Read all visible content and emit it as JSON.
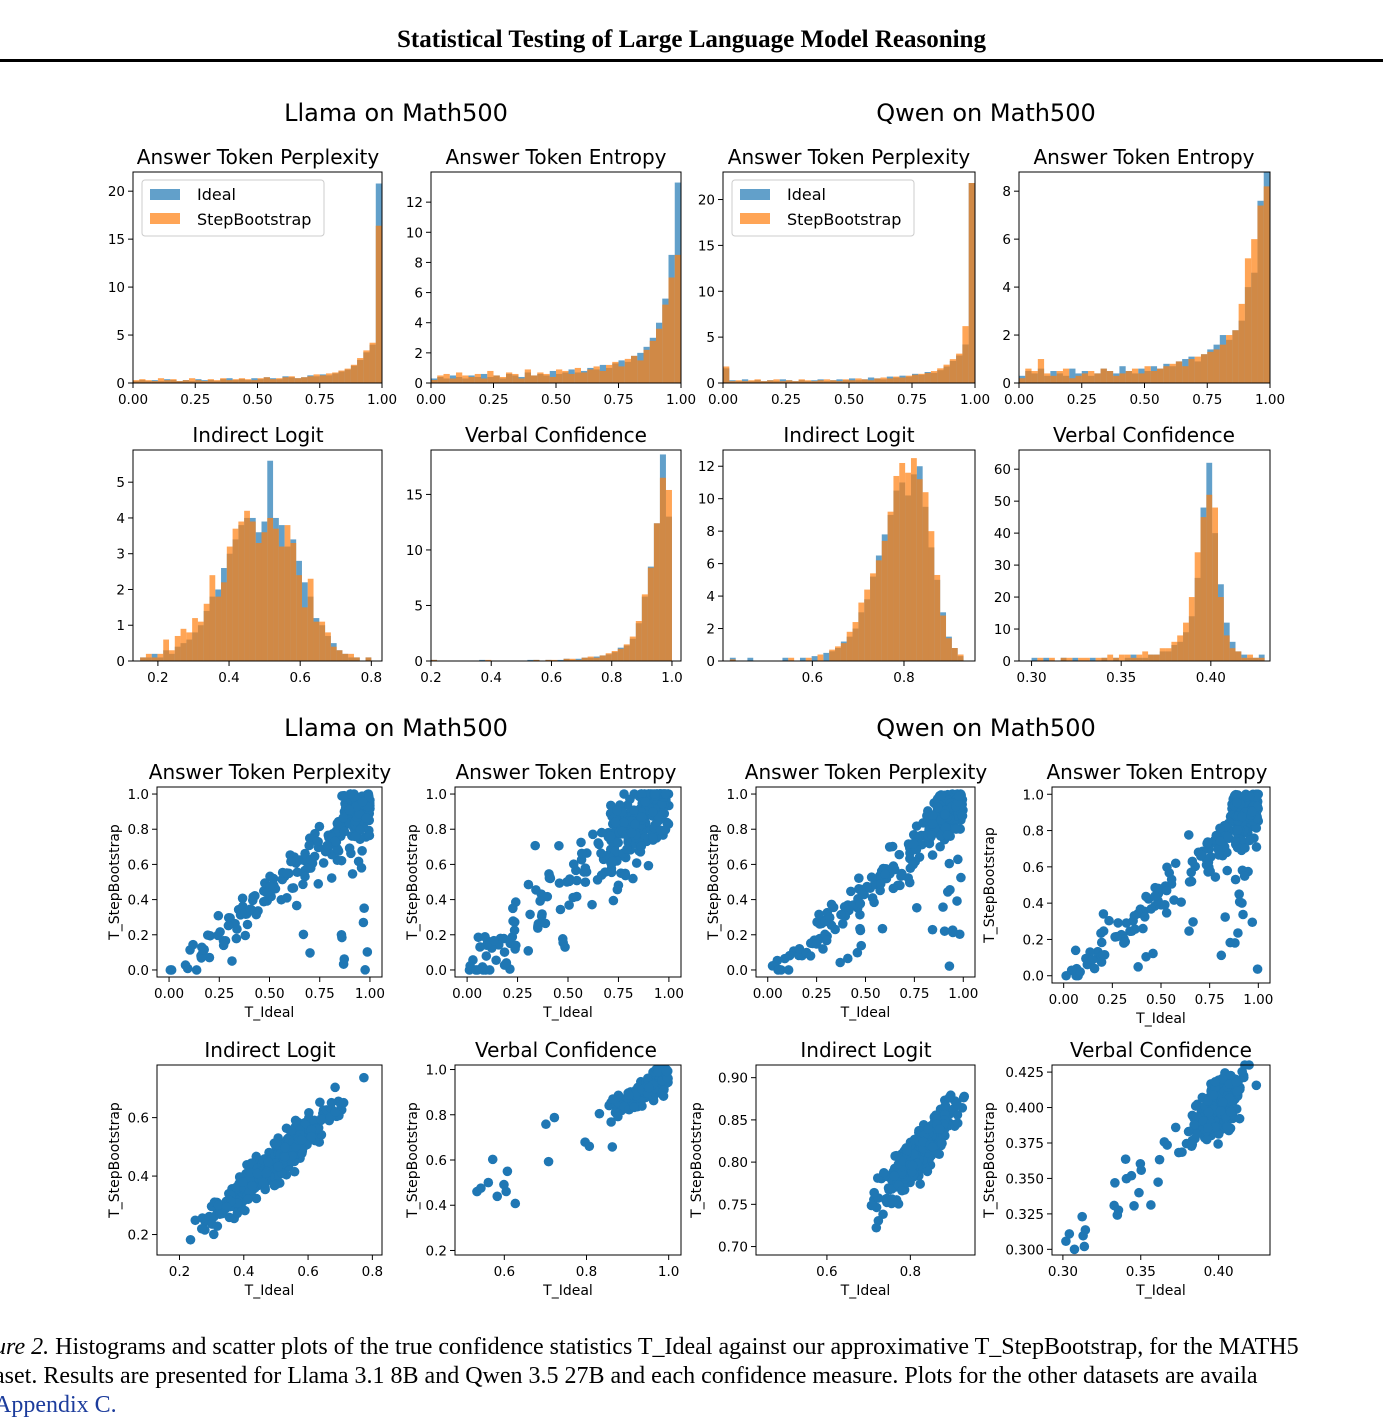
{
  "header": {
    "title": "Statistical Testing of Large Language Model Reasoning"
  },
  "figure": {
    "group_titles": [
      "Llama on Math500",
      "Qwen on Math500",
      "Llama on Math500",
      "Qwen on Math500"
    ],
    "legend": {
      "ideal": "Ideal",
      "step": "StepBootstrap"
    },
    "colors": {
      "ideal": "#1f77b4",
      "step": "#ff7f0e",
      "scatter": "#1f77b4"
    },
    "scatter_xlabel": "T_Ideal",
    "scatter_ylabel": "T_StepBootstrap"
  },
  "chart_data": [
    {
      "type": "histogram",
      "group": "Llama on Math500",
      "title": "Answer Token Perplexity",
      "xlim": [
        0,
        1
      ],
      "ylim": [
        0,
        22
      ],
      "xticks": [
        "0.00",
        "0.25",
        "0.50",
        "0.75",
        "1.00"
      ],
      "yticks": [
        0,
        5,
        10,
        15,
        20
      ],
      "legend": true,
      "ideal_bins": {
        "range": [
          0,
          1
        ],
        "heights": [
          0.2,
          0.3,
          0.2,
          0.3,
          0.2,
          0.4,
          0.3,
          0.2,
          0.3,
          0.2,
          0.4,
          0.3,
          0.3,
          0.2,
          0.4,
          0.5,
          0.3,
          0.4,
          0.3,
          0.5,
          0.4,
          0.6,
          0.5,
          0.4,
          0.7,
          0.6,
          0.5,
          0.6,
          0.8,
          0.7,
          0.9,
          0.8,
          1.0,
          1.2,
          1.4,
          1.8,
          2.4,
          3.2,
          4.0,
          20.8
        ]
      },
      "step_bins": {
        "range": [
          0,
          1
        ],
        "heights": [
          0.3,
          0.4,
          0.3,
          0.2,
          0.5,
          0.3,
          0.4,
          0.2,
          0.3,
          0.5,
          0.3,
          0.2,
          0.4,
          0.3,
          0.5,
          0.3,
          0.4,
          0.5,
          0.4,
          0.3,
          0.5,
          0.6,
          0.4,
          0.5,
          0.6,
          0.7,
          0.5,
          0.6,
          0.7,
          0.9,
          0.8,
          1.0,
          1.1,
          1.3,
          1.5,
          1.9,
          2.6,
          3.4,
          4.2,
          16.4
        ]
      }
    },
    {
      "type": "histogram",
      "group": "Llama on Math500",
      "title": "Answer Token Entropy",
      "xlim": [
        0,
        1
      ],
      "ylim": [
        0,
        14
      ],
      "xticks": [
        "0.00",
        "0.25",
        "0.50",
        "0.75",
        "1.00"
      ],
      "yticks": [
        0,
        2,
        4,
        6,
        8,
        10,
        12
      ],
      "legend": false,
      "ideal_bins": {
        "range": [
          0,
          1
        ],
        "heights": [
          0.3,
          0.4,
          0.3,
          0.5,
          0.4,
          0.3,
          0.5,
          0.4,
          0.6,
          0.4,
          0.5,
          0.3,
          0.6,
          0.5,
          0.4,
          0.7,
          0.5,
          0.6,
          0.5,
          0.8,
          0.6,
          0.7,
          0.9,
          0.7,
          0.8,
          1.0,
          0.9,
          1.2,
          1.0,
          1.3,
          1.5,
          1.4,
          1.8,
          2.0,
          2.4,
          3.0,
          4.0,
          5.6,
          8.5,
          13.3
        ]
      },
      "step_bins": {
        "range": [
          0,
          1
        ],
        "heights": [
          0.2,
          0.5,
          0.6,
          0.3,
          0.7,
          0.5,
          0.4,
          0.6,
          0.3,
          0.8,
          0.5,
          0.4,
          0.7,
          0.6,
          0.3,
          0.9,
          0.5,
          0.7,
          0.6,
          0.4,
          0.9,
          0.8,
          0.6,
          1.0,
          0.7,
          0.9,
          1.1,
          0.8,
          1.2,
          1.4,
          1.1,
          1.6,
          1.8,
          1.5,
          2.2,
          2.8,
          3.6,
          5.2,
          7.0,
          8.5
        ]
      }
    },
    {
      "type": "histogram",
      "group": "Qwen on Math500",
      "title": "Answer Token Perplexity",
      "xlim": [
        0,
        1
      ],
      "ylim": [
        0,
        23
      ],
      "xticks": [
        "0.00",
        "0.25",
        "0.50",
        "0.75",
        "1.00"
      ],
      "yticks": [
        0,
        5,
        10,
        15,
        20
      ],
      "legend": true,
      "ideal_bins": {
        "range": [
          0,
          1
        ],
        "heights": [
          1.6,
          0.3,
          0.2,
          0.4,
          0.2,
          0.3,
          0.2,
          0.3,
          0.2,
          0.4,
          0.3,
          0.2,
          0.3,
          0.2,
          0.3,
          0.4,
          0.2,
          0.3,
          0.4,
          0.3,
          0.5,
          0.3,
          0.4,
          0.6,
          0.5,
          0.4,
          0.7,
          0.6,
          0.8,
          0.7,
          1.0,
          0.9,
          1.2,
          1.1,
          1.4,
          1.8,
          2.4,
          3.0,
          4.2,
          21.8
        ]
      },
      "step_bins": {
        "range": [
          0,
          1
        ],
        "heights": [
          1.8,
          0.2,
          0.3,
          0.2,
          0.3,
          0.4,
          0.2,
          0.3,
          0.4,
          0.2,
          0.3,
          0.2,
          0.4,
          0.3,
          0.2,
          0.3,
          0.4,
          0.3,
          0.2,
          0.4,
          0.3,
          0.5,
          0.4,
          0.3,
          0.5,
          0.6,
          0.5,
          0.7,
          0.6,
          0.8,
          0.9,
          1.0,
          1.1,
          1.3,
          1.6,
          2.0,
          2.6,
          3.2,
          6.2,
          21.8
        ]
      }
    },
    {
      "type": "histogram",
      "group": "Qwen on Math500",
      "title": "Answer Token Entropy",
      "xlim": [
        0,
        1
      ],
      "ylim": [
        0,
        8.8
      ],
      "xticks": [
        "0.00",
        "0.25",
        "0.50",
        "0.75",
        "1.00"
      ],
      "yticks": [
        0,
        2,
        4,
        6,
        8
      ],
      "legend": false,
      "ideal_bins": {
        "range": [
          0,
          1
        ],
        "heights": [
          0.3,
          0.5,
          0.4,
          0.6,
          0.3,
          0.5,
          0.4,
          0.3,
          0.6,
          0.4,
          0.5,
          0.3,
          0.4,
          0.6,
          0.5,
          0.4,
          0.7,
          0.5,
          0.4,
          0.6,
          0.5,
          0.7,
          0.6,
          0.8,
          0.7,
          0.9,
          1.0,
          1.1,
          0.9,
          1.2,
          1.4,
          1.6,
          2.0,
          1.8,
          2.2,
          2.6,
          4.0,
          4.6,
          7.6,
          8.8
        ]
      },
      "step_bins": {
        "range": [
          0,
          1
        ],
        "heights": [
          0.2,
          0.6,
          0.5,
          1.0,
          0.4,
          0.3,
          0.5,
          0.6,
          0.2,
          0.3,
          0.4,
          0.5,
          0.4,
          0.6,
          0.5,
          0.3,
          0.4,
          0.5,
          0.6,
          0.4,
          0.7,
          0.5,
          0.6,
          0.7,
          0.8,
          0.9,
          0.7,
          1.0,
          1.1,
          1.2,
          1.3,
          1.4,
          1.6,
          2.0,
          2.2,
          3.3,
          5.2,
          6.0,
          7.4,
          8.2
        ]
      }
    },
    {
      "type": "histogram",
      "group": "Llama on Math500",
      "title": "Indirect Logit",
      "xlim": [
        0.13,
        0.83
      ],
      "ylim": [
        0,
        5.9
      ],
      "xticks": [
        "0.2",
        "0.4",
        "0.6",
        "0.8"
      ],
      "yticks": [
        0,
        1,
        2,
        3,
        4,
        5
      ],
      "legend": false,
      "ideal_bins": {
        "range": [
          0.15,
          0.8
        ],
        "heights": [
          0.1,
          0.1,
          0.2,
          0.1,
          0.3,
          0.2,
          0.4,
          0.5,
          0.6,
          0.8,
          1.0,
          1.4,
          1.8,
          2.0,
          2.6,
          3.0,
          3.4,
          3.8,
          4.0,
          4.0,
          3.6,
          3.9,
          5.6,
          4.0,
          3.8,
          3.2,
          3.4,
          2.8,
          2.2,
          1.8,
          1.2,
          1.0,
          0.7,
          0.5,
          0.3,
          0.2,
          0.1,
          0.1,
          0.0,
          0.1
        ]
      },
      "step_bins": {
        "range": [
          0.15,
          0.8
        ],
        "heights": [
          0.1,
          0.2,
          0.1,
          0.2,
          0.6,
          0.3,
          0.7,
          0.9,
          0.8,
          1.2,
          1.1,
          1.6,
          2.4,
          1.8,
          2.2,
          3.2,
          3.7,
          3.9,
          4.2,
          3.9,
          3.3,
          3.6,
          4.0,
          3.7,
          3.2,
          3.8,
          3.3,
          2.4,
          1.5,
          2.3,
          1.1,
          1.1,
          0.8,
          0.4,
          0.3,
          0.2,
          0.2,
          0.1,
          0.0,
          0.1
        ]
      }
    },
    {
      "type": "histogram",
      "group": "Llama on Math500",
      "title": "Verbal Confidence",
      "xlim": [
        0.2,
        1.03
      ],
      "ylim": [
        0,
        19
      ],
      "xticks": [
        "0.2",
        "0.4",
        "0.6",
        "0.8",
        "1.0"
      ],
      "yticks": [
        0,
        5,
        10,
        15
      ],
      "legend": false,
      "ideal_bins": {
        "range": [
          0.2,
          1.0
        ],
        "heights": [
          0.1,
          0,
          0,
          0,
          0,
          0,
          0,
          0,
          0.1,
          0,
          0,
          0,
          0,
          0,
          0,
          0,
          0.1,
          0.1,
          0,
          0.1,
          0,
          0.1,
          0.2,
          0.1,
          0.2,
          0.3,
          0.3,
          0.4,
          0.5,
          0.6,
          0.8,
          1.2,
          1.4,
          2.0,
          3.4,
          5.8,
          8.5,
          12.4,
          18.6,
          13.0
        ]
      },
      "step_bins": {
        "range": [
          0.2,
          1.0
        ],
        "heights": [
          0.1,
          0,
          0,
          0,
          0,
          0,
          0,
          0,
          0,
          0.1,
          0,
          0,
          0,
          0,
          0,
          0,
          0,
          0.1,
          0,
          0.1,
          0.1,
          0,
          0.2,
          0.2,
          0.1,
          0.3,
          0.4,
          0.3,
          0.5,
          0.7,
          0.9,
          1.1,
          1.5,
          2.2,
          3.6,
          6.0,
          8.4,
          12.4,
          16.5,
          15.4
        ]
      }
    },
    {
      "type": "histogram",
      "group": "Qwen on Math500",
      "title": "Indirect Logit",
      "xlim": [
        0.405,
        0.955
      ],
      "ylim": [
        0,
        13
      ],
      "xticks": [
        "0.6",
        "0.8"
      ],
      "yticks": [
        0,
        2,
        4,
        6,
        8,
        10,
        12
      ],
      "legend": false,
      "ideal_bins": {
        "range": [
          0.42,
          0.93
        ],
        "heights": [
          0.2,
          0,
          0,
          0.2,
          0,
          0,
          0,
          0,
          0,
          0.2,
          0,
          0,
          0.2,
          0,
          0.3,
          0,
          0.5,
          0.6,
          0.8,
          1.2,
          1.5,
          2.0,
          3.0,
          3.8,
          5.2,
          6.5,
          7.8,
          9.0,
          10.5,
          11.0,
          10.2,
          11.5,
          12.0,
          9.5,
          7.0,
          5.0,
          3.0,
          1.5,
          0.8,
          0.3
        ]
      },
      "step_bins": {
        "range": [
          0.42,
          0.93
        ],
        "heights": [
          0.1,
          0,
          0,
          0,
          0,
          0,
          0,
          0,
          0,
          0,
          0.2,
          0,
          0,
          0.2,
          0,
          0.4,
          0,
          0.7,
          0.9,
          1.1,
          1.8,
          2.4,
          3.6,
          4.4,
          5.4,
          6.2,
          7.4,
          9.2,
          11.4,
          12.2,
          11.6,
          12.5,
          11.2,
          10.4,
          8.0,
          5.3,
          2.8,
          1.4,
          0.8,
          0.4
        ]
      }
    },
    {
      "type": "histogram",
      "group": "Qwen on Math500",
      "title": "Verbal Confidence",
      "xlim": [
        0.293,
        0.433
      ],
      "ylim": [
        0,
        66
      ],
      "xticks": [
        "0.30",
        "0.35",
        "0.40"
      ],
      "yticks": [
        0,
        10,
        20,
        30,
        40,
        50,
        60
      ],
      "legend": false,
      "ideal_bins": {
        "range": [
          0.3,
          0.43
        ],
        "heights": [
          1,
          0,
          1,
          0,
          0,
          1,
          0,
          1,
          0,
          0,
          1,
          0,
          1,
          0,
          1,
          0,
          1,
          2,
          1,
          1,
          2,
          2,
          3,
          3,
          5,
          6,
          9,
          14,
          26,
          48,
          62,
          40,
          24,
          12,
          6,
          3,
          2,
          1,
          1,
          2
        ]
      },
      "step_bins": {
        "range": [
          0.3,
          0.43
        ],
        "heights": [
          0,
          1,
          0,
          1,
          0,
          1,
          1,
          0,
          1,
          1,
          0,
          1,
          1,
          2,
          1,
          2,
          2,
          1,
          2,
          3,
          2,
          2,
          4,
          4,
          6,
          8,
          12,
          20,
          34,
          45,
          52,
          48,
          20,
          8,
          4,
          3,
          1,
          2,
          1,
          1
        ]
      }
    },
    {
      "type": "scatter",
      "group": "Llama on Math500",
      "title": "Answer Token Perplexity",
      "xlim": [
        -0.06,
        1.06
      ],
      "ylim": [
        -0.04,
        1.04
      ],
      "xticks": [
        "0.00",
        "0.25",
        "0.50",
        "0.75",
        "1.00"
      ],
      "yticks": [
        "0.0",
        "0.2",
        "0.4",
        "0.6",
        "0.8",
        "1.0"
      ],
      "points_spec": {
        "seed": 11,
        "n": 320,
        "model": "upper",
        "noise": 0.12
      }
    },
    {
      "type": "scatter",
      "group": "Llama on Math500",
      "title": "Answer Token Entropy",
      "xlim": [
        -0.06,
        1.06
      ],
      "ylim": [
        -0.04,
        1.04
      ],
      "xticks": [
        "0.00",
        "0.25",
        "0.50",
        "0.75",
        "1.00"
      ],
      "yticks": [
        "0.0",
        "0.2",
        "0.4",
        "0.6",
        "0.8",
        "1.0"
      ],
      "points_spec": {
        "seed": 23,
        "n": 320,
        "model": "diag",
        "noise": 0.12
      }
    },
    {
      "type": "scatter",
      "group": "Qwen on Math500",
      "title": "Answer Token Perplexity",
      "xlim": [
        -0.06,
        1.06
      ],
      "ylim": [
        -0.04,
        1.04
      ],
      "xticks": [
        "0.00",
        "0.25",
        "0.50",
        "0.75",
        "1.00"
      ],
      "yticks": [
        "0.0",
        "0.2",
        "0.4",
        "0.6",
        "0.8",
        "1.0"
      ],
      "points_spec": {
        "seed": 37,
        "n": 340,
        "model": "upper",
        "noise": 0.1
      }
    },
    {
      "type": "scatter",
      "group": "Qwen on Math500",
      "title": "Answer Token Entropy",
      "xlim": [
        -0.06,
        1.06
      ],
      "ylim": [
        -0.04,
        1.04
      ],
      "xticks": [
        "0.00",
        "0.25",
        "0.50",
        "0.75",
        "1.00"
      ],
      "yticks": [
        "0.0",
        "0.2",
        "0.4",
        "0.6",
        "0.8",
        "1.0"
      ],
      "points_spec": {
        "seed": 41,
        "n": 330,
        "model": "upper",
        "noise": 0.12
      }
    },
    {
      "type": "scatter",
      "group": "Llama on Math500",
      "title": "Indirect Logit",
      "xlim": [
        0.13,
        0.83
      ],
      "ylim": [
        0.13,
        0.78
      ],
      "xticks": [
        "0.2",
        "0.4",
        "0.6",
        "0.8"
      ],
      "yticks": [
        "0.2",
        "0.4",
        "0.6"
      ],
      "points_spec": {
        "seed": 53,
        "n": 480,
        "model": "linear",
        "center": [
          0.5,
          0.45
        ],
        "spread": [
          0.1,
          0.03
        ]
      }
    },
    {
      "type": "scatter",
      "group": "Llama on Math500",
      "title": "Verbal Confidence",
      "xlim": [
        0.48,
        1.03
      ],
      "ylim": [
        0.18,
        1.02
      ],
      "xticks": [
        "0.6",
        "0.8",
        "1.0"
      ],
      "yticks": [
        "0.2",
        "0.4",
        "0.6",
        "0.8",
        "1.0"
      ],
      "points_spec": {
        "seed": 61,
        "n": 160,
        "model": "verbal"
      }
    },
    {
      "type": "scatter",
      "group": "Qwen on Math500",
      "title": "Indirect Logit",
      "xlim": [
        0.43,
        0.955
      ],
      "ylim": [
        0.69,
        0.915
      ],
      "xticks": [
        "0.6",
        "0.8"
      ],
      "yticks": [
        "0.70",
        "0.75",
        "0.80",
        "0.85",
        "0.90"
      ],
      "points_spec": {
        "seed": 71,
        "n": 480,
        "model": "linear",
        "center": [
          0.82,
          0.81
        ],
        "spread": [
          0.04,
          0.012
        ]
      }
    },
    {
      "type": "scatter",
      "group": "Qwen on Math500",
      "title": "Verbal Confidence",
      "xlim": [
        0.293,
        0.433
      ],
      "ylim": [
        0.296,
        0.43
      ],
      "xticks": [
        "0.30",
        "0.35",
        "0.40"
      ],
      "yticks": [
        "0.300",
        "0.325",
        "0.350",
        "0.375",
        "0.400",
        "0.425"
      ],
      "points_spec": {
        "seed": 83,
        "n": 300,
        "model": "verbalq"
      }
    }
  ],
  "caption": {
    "label": "ure 2.",
    "line1": "Histograms and scatter plots of the true confidence statistics T_Ideal against our approximative T_StepBootstrap, for the MATH5",
    "line2": "aset. Results are presented for Llama 3.1 8B and Qwen 3.5 27B and each confidence measure. Plots for the other datasets are availa",
    "line3": "Appendix C."
  }
}
